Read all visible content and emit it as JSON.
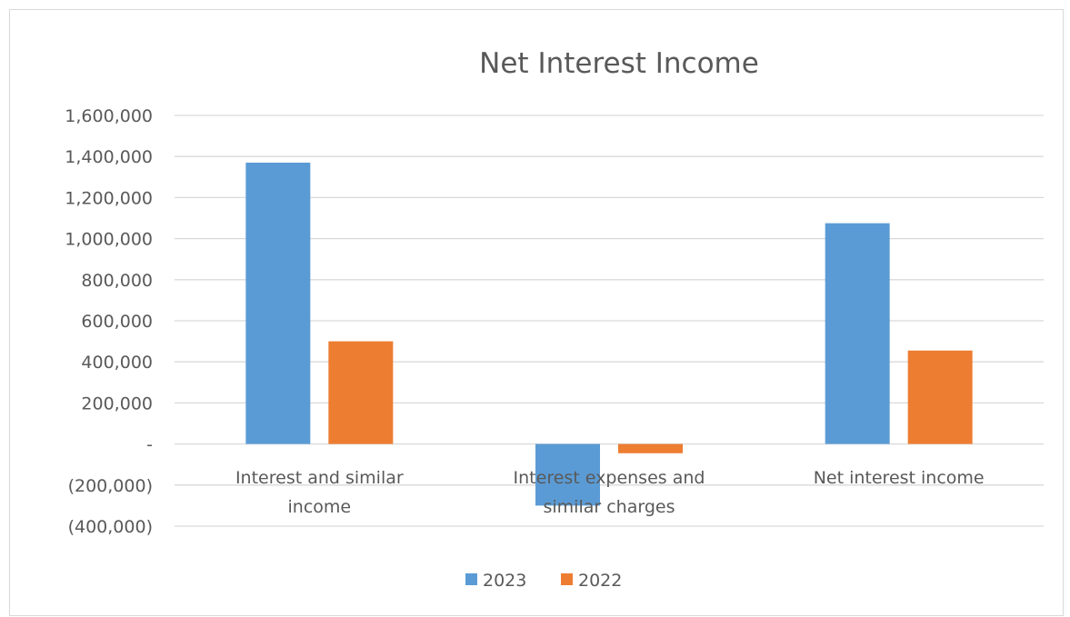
{
  "chart_data": {
    "type": "bar",
    "title": "Net Interest Income",
    "categories": [
      [
        "Interest and similar",
        "income"
      ],
      [
        "Interest expenses and",
        "similar charges"
      ],
      [
        "Net interest income"
      ]
    ],
    "series": [
      {
        "name": "2023",
        "color": "#5b9bd5",
        "values": [
          1370000,
          -300000,
          1075000
        ]
      },
      {
        "name": "2022",
        "color": "#ed7d31",
        "values": [
          500000,
          -45000,
          455000
        ]
      }
    ],
    "ylim": [
      -400000,
      1600000
    ],
    "yticks": [
      {
        "value": 1600000,
        "label": "1,600,000"
      },
      {
        "value": 1400000,
        "label": "1,400,000"
      },
      {
        "value": 1200000,
        "label": "1,200,000"
      },
      {
        "value": 1000000,
        "label": "1,000,000"
      },
      {
        "value": 800000,
        "label": "800,000"
      },
      {
        "value": 600000,
        "label": "600,000"
      },
      {
        "value": 400000,
        "label": "400,000"
      },
      {
        "value": 200000,
        "label": "200,000"
      },
      {
        "value": 0,
        "label": "-"
      },
      {
        "value": -200000,
        "label": "(200,000)"
      },
      {
        "value": -400000,
        "label": "(400,000)"
      }
    ],
    "grid": true,
    "legend_position": "bottom",
    "xlabel": "",
    "ylabel": ""
  }
}
